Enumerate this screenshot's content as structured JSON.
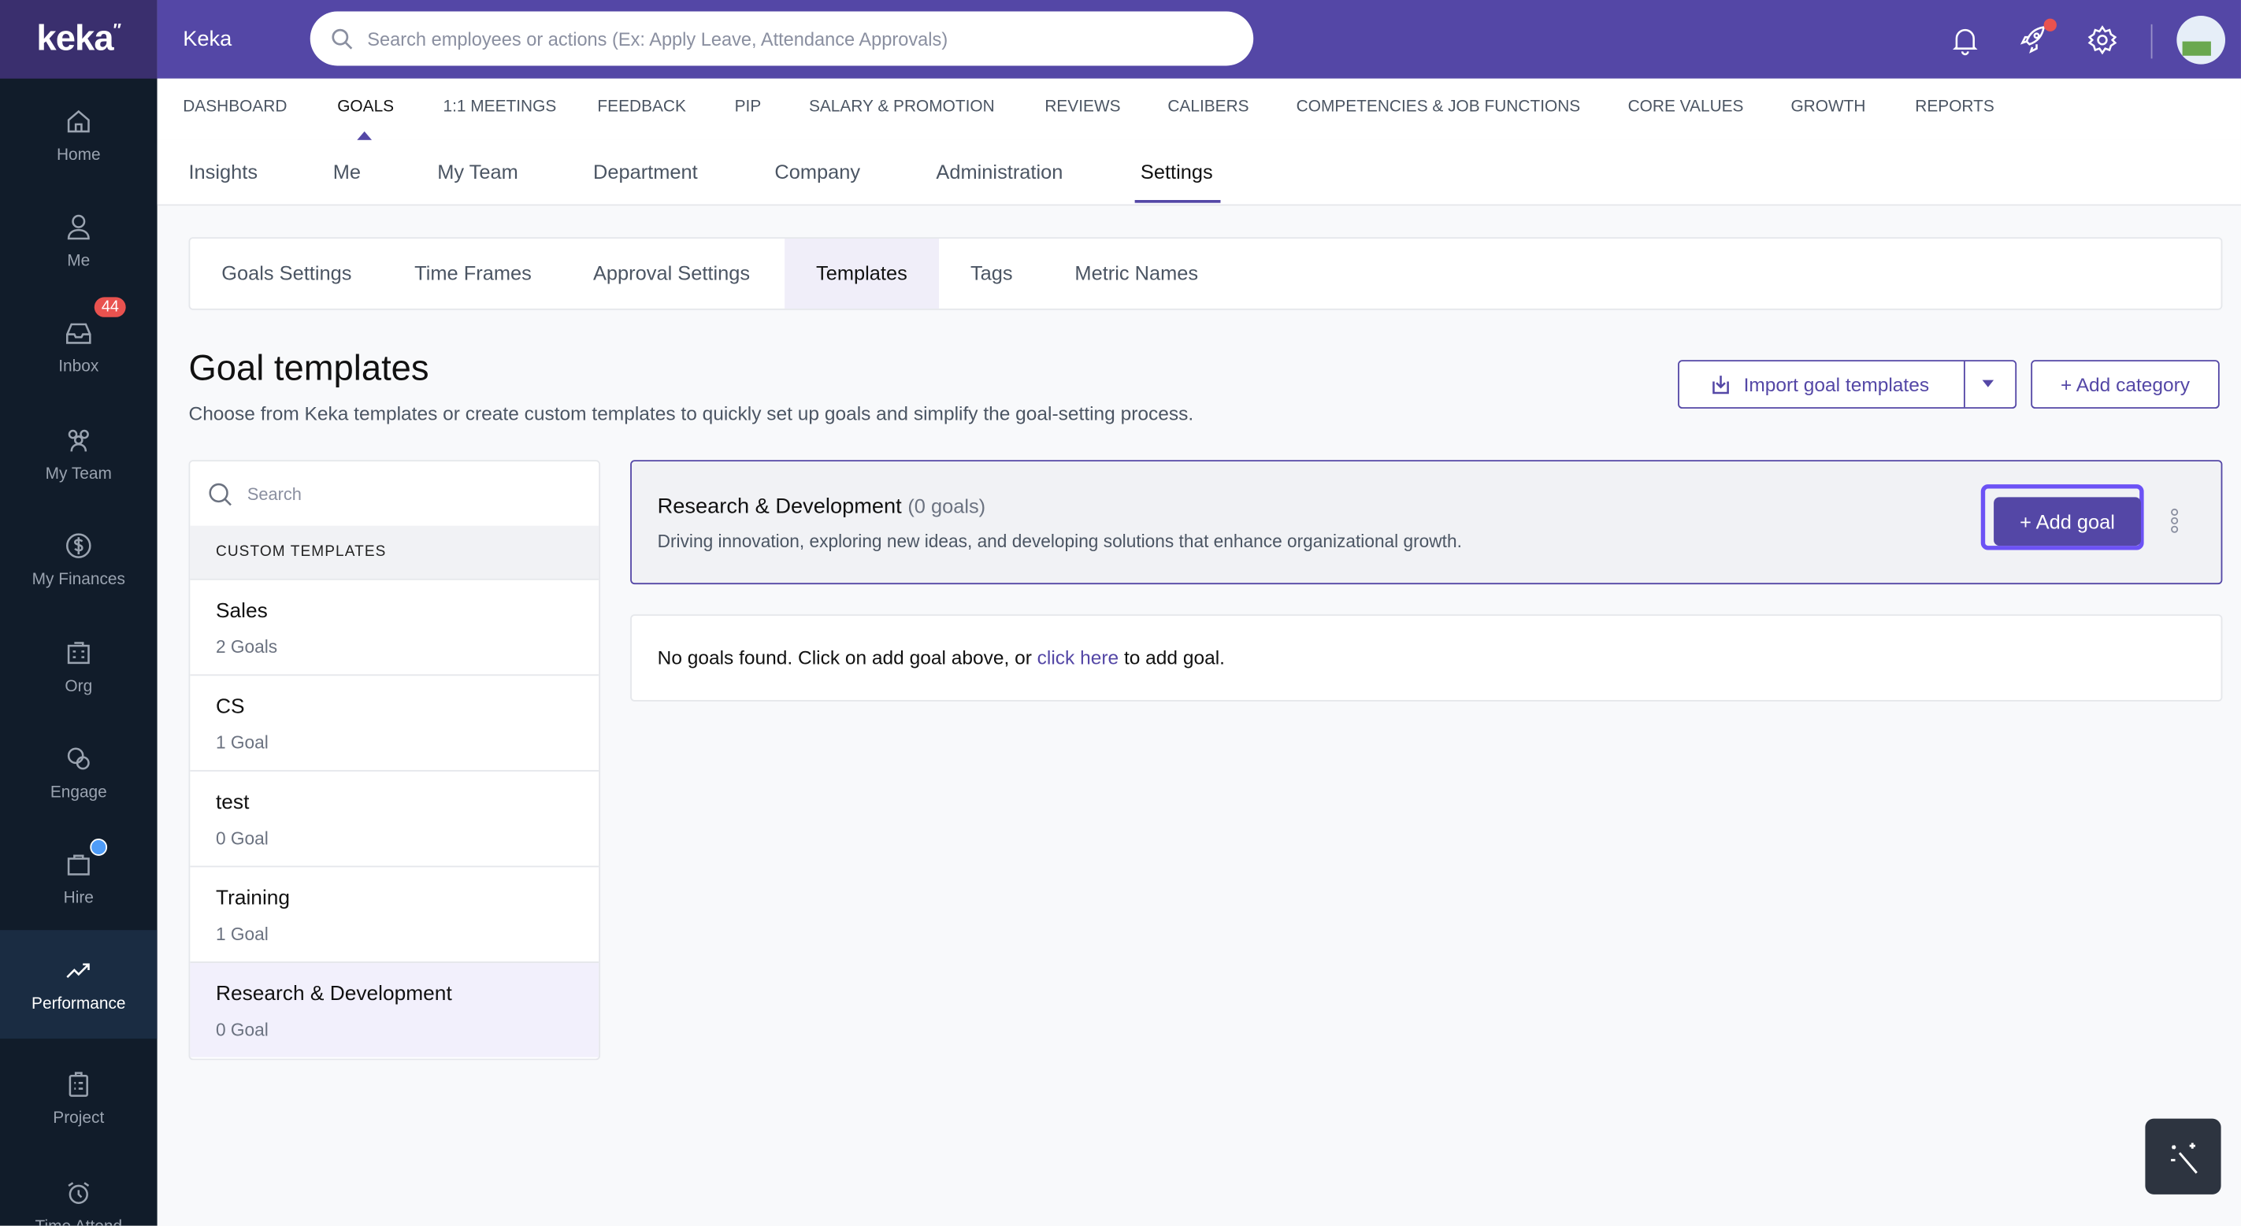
{
  "app": {
    "logo": "keka",
    "title": "Keka",
    "search_placeholder": "Search employees or actions (Ex: Apply Leave, Attendance Approvals)"
  },
  "sidebar": {
    "items": [
      {
        "label": "Home",
        "icon": "home-icon"
      },
      {
        "label": "Me",
        "icon": "user-icon"
      },
      {
        "label": "Inbox",
        "icon": "inbox-icon",
        "badge": "44"
      },
      {
        "label": "My Team",
        "icon": "team-icon"
      },
      {
        "label": "My Finances",
        "icon": "dollar-icon"
      },
      {
        "label": "Org",
        "icon": "org-icon"
      },
      {
        "label": "Engage",
        "icon": "chat-icon"
      },
      {
        "label": "Hire",
        "icon": "briefcase-icon"
      },
      {
        "label": "Performance",
        "icon": "trend-up-icon",
        "active": true
      },
      {
        "label": "Project",
        "icon": "clipboard-icon"
      },
      {
        "label": "Time Attend",
        "icon": "alarm-clock-icon"
      }
    ]
  },
  "nav": {
    "items": [
      "DASHBOARD",
      "GOALS",
      "1:1 MEETINGS",
      "FEEDBACK",
      "PIP",
      "SALARY & PROMOTION",
      "REVIEWS",
      "CALIBERS",
      "COMPETENCIES & JOB FUNCTIONS",
      "CORE VALUES",
      "GROWTH",
      "REPORTS"
    ],
    "active": "GOALS"
  },
  "subnav": {
    "items": [
      "Insights",
      "Me",
      "My Team",
      "Department",
      "Company",
      "Administration",
      "Settings"
    ],
    "active": "Settings"
  },
  "tabs": {
    "items": [
      "Goals Settings",
      "Time Frames",
      "Approval Settings",
      "Templates",
      "Tags",
      "Metric Names"
    ],
    "active": "Templates"
  },
  "page": {
    "title": "Goal templates",
    "description": "Choose from Keka templates or create custom templates to quickly set up goals and simplify the goal-setting process.",
    "import_label": "Import goal templates",
    "add_category_label": "+ Add category"
  },
  "templates": {
    "search_placeholder": "Search",
    "section_label": "CUSTOM TEMPLATES",
    "items": [
      {
        "name": "Sales",
        "count": "2 Goals"
      },
      {
        "name": "CS",
        "count": "1 Goal"
      },
      {
        "name": "test",
        "count": "0 Goal"
      },
      {
        "name": "Training",
        "count": "1 Goal"
      },
      {
        "name": "Research & Development",
        "count": "0 Goal",
        "selected": true
      }
    ]
  },
  "category": {
    "name": "Research & Development",
    "count": "(0 goals)",
    "description": "Driving innovation, exploring new ideas, and developing solutions that enhance organizational growth.",
    "add_goal_label": "+ Add goal"
  },
  "empty": {
    "prefix": "No goals found. Click on add goal above, or ",
    "link": "click here",
    "suffix": " to add goal."
  },
  "colors": {
    "brand": "#5447a6",
    "sidebar": "#111c2a",
    "highlight": "#6c52f5",
    "badge": "#e9524f"
  }
}
